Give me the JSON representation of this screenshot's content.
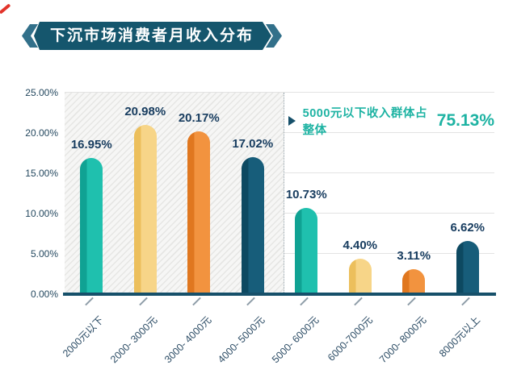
{
  "title_banner": {
    "text": "下沉市场消费者月收入分布"
  },
  "annotation": {
    "text": "5000元以下收入群体占整体",
    "value": "75.13%"
  },
  "chart_data": {
    "type": "bar",
    "title": "下沉市场消费者月收入分布",
    "categories": [
      "2000元以下",
      "2000- 3000元",
      "3000- 4000元",
      "4000- 5000元",
      "5000- 6000元",
      "6000-7000元",
      "7000- 8000元",
      "8000元以上"
    ],
    "values": [
      16.95,
      20.98,
      20.17,
      17.02,
      10.73,
      4.4,
      3.11,
      6.62
    ],
    "value_labels": [
      "16.95%",
      "20.98%",
      "20.17%",
      "17.02%",
      "10.73%",
      "4.40%",
      "3.11%",
      "6.62%"
    ],
    "ylim": [
      0,
      25
    ],
    "yticks": {
      "values": [
        0,
        5,
        10,
        15,
        20,
        25
      ],
      "labels": [
        "0.00%",
        "5.00%",
        "10.00%",
        "15.00%",
        "20.00%",
        "25.00%"
      ]
    },
    "grid": "horizontal-light-gray",
    "legend": "none",
    "highlight_region": {
      "style": "diagonal-hatch",
      "covers_categories": [
        "2000元以下",
        "2000- 3000元",
        "3000- 4000元",
        "4000- 5000元"
      ],
      "annotation": "5000元以下收入群体占整体75.13%"
    },
    "palette": [
      {
        "name": "teal",
        "dark": "#10a293",
        "light": "#1fc0ae"
      },
      {
        "name": "yellow",
        "dark": "#ecbf5c",
        "light": "#f7d588"
      },
      {
        "name": "orange",
        "dark": "#e0771f",
        "light": "#f2933f"
      },
      {
        "name": "navy",
        "dark": "#0d4961",
        "light": "#175d7a"
      }
    ]
  },
  "colors": {
    "banner": "#15566d",
    "banner_chevron": "#32708a",
    "axis": "#16506a",
    "grid_line": "#e3e3e3",
    "value_label": "#173c5f",
    "tick_label": "#2d4d66",
    "y_label": "#24485f",
    "annotation": "#1eb3a3",
    "red_mark": "#e2342b"
  }
}
